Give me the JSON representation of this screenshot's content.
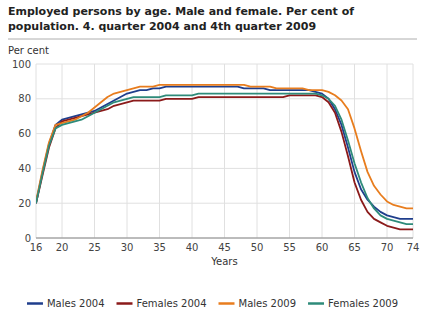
{
  "chart_data": {
    "type": "line",
    "title": "Employed persons by age. Male and female. Per cent of",
    "subtitle": "population. 4. quarter 2004 and 4th quarter 2009",
    "ylabel": "Per cent",
    "xlabel": "Years",
    "xlim": [
      16,
      74
    ],
    "ylim": [
      0,
      100
    ],
    "xticks": [
      16,
      20,
      25,
      30,
      35,
      40,
      45,
      50,
      55,
      60,
      65,
      70,
      74
    ],
    "yticks": [
      0,
      20,
      40,
      60,
      80,
      100
    ],
    "grid": true,
    "legend": "bottom",
    "x": [
      16,
      17,
      18,
      19,
      20,
      21,
      22,
      23,
      24,
      25,
      26,
      27,
      28,
      29,
      30,
      31,
      32,
      33,
      34,
      35,
      36,
      37,
      38,
      39,
      40,
      41,
      42,
      43,
      44,
      45,
      46,
      47,
      48,
      49,
      50,
      51,
      52,
      53,
      54,
      55,
      56,
      57,
      58,
      59,
      60,
      61,
      62,
      63,
      64,
      65,
      66,
      67,
      68,
      69,
      70,
      71,
      72,
      73,
      74
    ],
    "series": [
      {
        "name": "Males 2004",
        "color": "#1f3e8c",
        "values": [
          20,
          38,
          54,
          65,
          68,
          69,
          70,
          71,
          72,
          73,
          75,
          77,
          79,
          81,
          83,
          84,
          85,
          85,
          86,
          86,
          87,
          87,
          87,
          87,
          87,
          87,
          87,
          87,
          87,
          87,
          87,
          87,
          86,
          86,
          86,
          86,
          85,
          85,
          85,
          85,
          85,
          85,
          85,
          84,
          83,
          80,
          74,
          65,
          52,
          38,
          28,
          22,
          18,
          15,
          13,
          12,
          11,
          11,
          11
        ]
      },
      {
        "name": "Females 2004",
        "color": "#8b1a1a",
        "values": [
          20,
          36,
          52,
          63,
          67,
          68,
          69,
          70,
          71,
          72,
          73,
          74,
          76,
          77,
          78,
          79,
          79,
          79,
          79,
          79,
          80,
          80,
          80,
          80,
          80,
          81,
          81,
          81,
          81,
          81,
          81,
          81,
          81,
          81,
          81,
          81,
          81,
          81,
          81,
          82,
          82,
          82,
          82,
          82,
          81,
          78,
          72,
          61,
          47,
          32,
          22,
          15,
          11,
          9,
          7,
          6,
          5,
          5,
          5
        ]
      },
      {
        "name": "Males 2009",
        "color": "#e87d1e",
        "values": [
          21,
          39,
          55,
          65,
          66,
          67,
          68,
          70,
          72,
          75,
          78,
          81,
          83,
          84,
          85,
          86,
          87,
          87,
          87,
          88,
          88,
          88,
          88,
          88,
          88,
          88,
          88,
          88,
          88,
          88,
          88,
          88,
          88,
          87,
          87,
          87,
          87,
          86,
          86,
          86,
          86,
          86,
          85,
          85,
          85,
          84,
          82,
          79,
          74,
          63,
          50,
          38,
          30,
          25,
          21,
          19,
          18,
          17,
          17
        ]
      },
      {
        "name": "Females 2009",
        "color": "#2e8b7a",
        "values": [
          20,
          37,
          53,
          63,
          65,
          66,
          67,
          68,
          70,
          72,
          74,
          76,
          78,
          79,
          80,
          81,
          81,
          81,
          81,
          81,
          82,
          82,
          82,
          82,
          82,
          83,
          83,
          83,
          83,
          83,
          83,
          83,
          83,
          83,
          83,
          83,
          83,
          83,
          83,
          83,
          83,
          83,
          83,
          83,
          82,
          80,
          76,
          68,
          56,
          43,
          32,
          23,
          17,
          13,
          11,
          10,
          9,
          8,
          8
        ]
      }
    ]
  }
}
